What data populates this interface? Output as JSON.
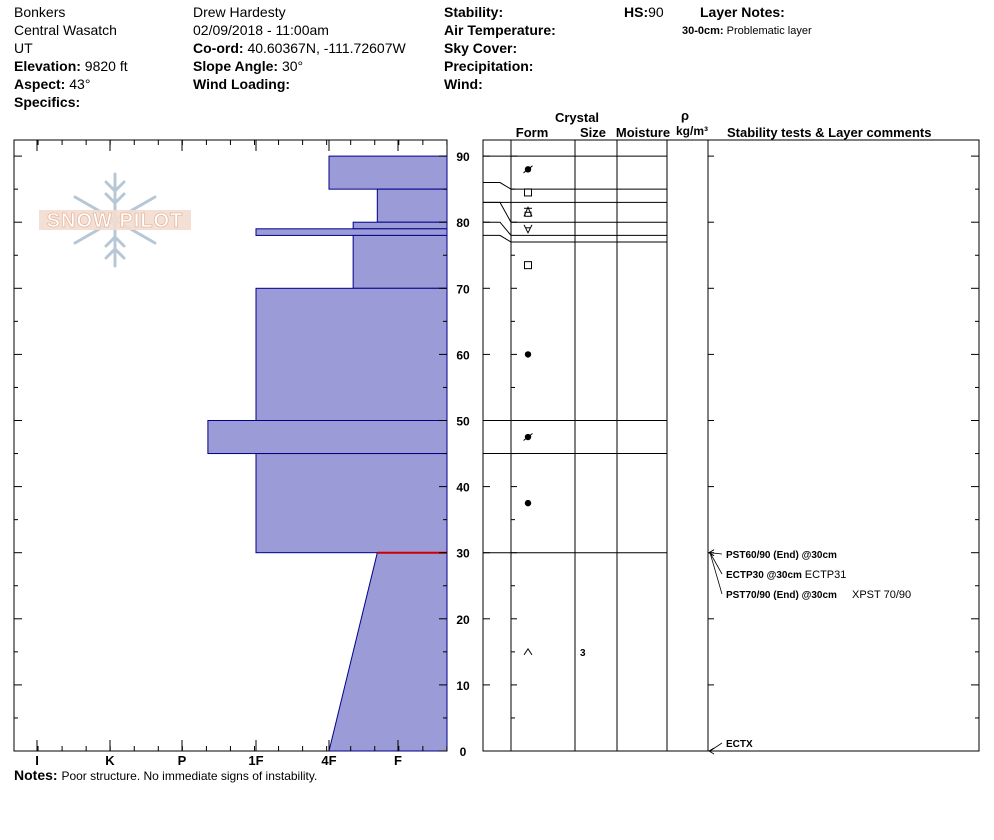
{
  "header": {
    "location": "Bonkers",
    "range": "Central Wasatch",
    "state": "UT",
    "elevation_label": "Elevation:",
    "elevation_value": "9820 ft",
    "aspect_label": "Aspect:",
    "aspect_value": "43°",
    "specifics_label": "Specifics:",
    "observer": "Drew Hardesty",
    "datetime": "02/09/2018 - 11:00am",
    "coord_label": "Co-ord:",
    "coord_value": "40.60367N, -111.72607W",
    "slope_label": "Slope Angle:",
    "slope_value": "30°",
    "wind_loading_label": "Wind Loading:",
    "stability_label": "Stability:",
    "air_temp_label": "Air Temperature:",
    "sky_cover_label": "Sky Cover:",
    "precip_label": "Precipitation:",
    "wind_label": "Wind:",
    "hs_label": "HS:",
    "hs_value": "90",
    "layer_notes_label": "Layer Notes:",
    "layer_note_range": "30-0cm:",
    "layer_note_text": "Problematic layer"
  },
  "logo_text": "SNOW PILOT",
  "notes_label": "Notes:",
  "notes_text": "Poor structure.  No immediate signs of instability.",
  "columns": {
    "crystal": "Crystal",
    "form": "Form",
    "size": "Size",
    "moisture": "Moisture",
    "rho": "ρ",
    "density_unit": "kg/m³",
    "stability": "Stability tests & Layer comments"
  },
  "colors": {
    "hardness_fill": "#9b9bd7",
    "hardness_stroke": "#00008b",
    "weak_layer": "#cc0000"
  },
  "chart_data": {
    "type": "snow-profile",
    "hardness_scale": [
      "I",
      "K",
      "P",
      "1F",
      "4F",
      "F"
    ],
    "hardness_scale_note": "index: I=1, K=2, P=3, 1F=4, 4F=5, F=6; bar fills from right edge",
    "depth_ticks": [
      0,
      10,
      20,
      30,
      40,
      50,
      60,
      70,
      80,
      90
    ],
    "ylim": [
      0,
      90
    ],
    "hardness_layers": [
      {
        "top": 90,
        "bottom": 85,
        "hardness": 5.0
      },
      {
        "top": 85,
        "bottom": 80,
        "hardness": 5.7
      },
      {
        "top": 80,
        "bottom": 79,
        "hardness": 5.35
      },
      {
        "top": 79,
        "bottom": 78,
        "hardness": 4.0
      },
      {
        "top": 78,
        "bottom": 70,
        "hardness": 5.35
      },
      {
        "top": 70,
        "bottom": 50,
        "hardness": 4.0
      },
      {
        "top": 50,
        "bottom": 45,
        "hardness": 3.35
      },
      {
        "top": 45,
        "bottom": 30,
        "hardness": 4.0
      },
      {
        "top": 30,
        "bottom": 0,
        "hardness_top": 5.7,
        "hardness_bottom": 5.0
      }
    ],
    "weak_layer_depth": 30,
    "layer_boundaries": [
      90,
      85,
      83,
      80,
      78,
      77,
      50,
      45,
      30
    ],
    "connector_bends": [
      {
        "from": 85,
        "to": 86
      },
      {
        "from": 80,
        "to": 83
      },
      {
        "from": 78,
        "to": 80
      },
      {
        "from": 77,
        "to": 78
      }
    ],
    "crystals": [
      {
        "depth": 88,
        "form": "decomposing"
      },
      {
        "depth": 84.5,
        "form": "faceted"
      },
      {
        "depth": 81.5,
        "form": "surface-hoar-on-facet"
      },
      {
        "depth": 79,
        "form": "surface-hoar"
      },
      {
        "depth": 73.5,
        "form": "faceted"
      },
      {
        "depth": 60,
        "form": "rounded"
      },
      {
        "depth": 47.5,
        "form": "decomposing"
      },
      {
        "depth": 37.5,
        "form": "rounded"
      },
      {
        "depth": 15,
        "form": "depth-hoar",
        "size": "3"
      }
    ],
    "stability_tests": [
      {
        "depth": 30,
        "bold": "PST60/90 (End) @30cm",
        "extra": ""
      },
      {
        "depth": 30,
        "bold": "ECTP30 @30cm",
        "extra": "ECTP31"
      },
      {
        "depth": 30,
        "bold": "PST70/90 (End) @30cm",
        "extra": "XPST 70/90"
      },
      {
        "depth": 0,
        "bold": "ECTX",
        "extra": ""
      }
    ]
  }
}
